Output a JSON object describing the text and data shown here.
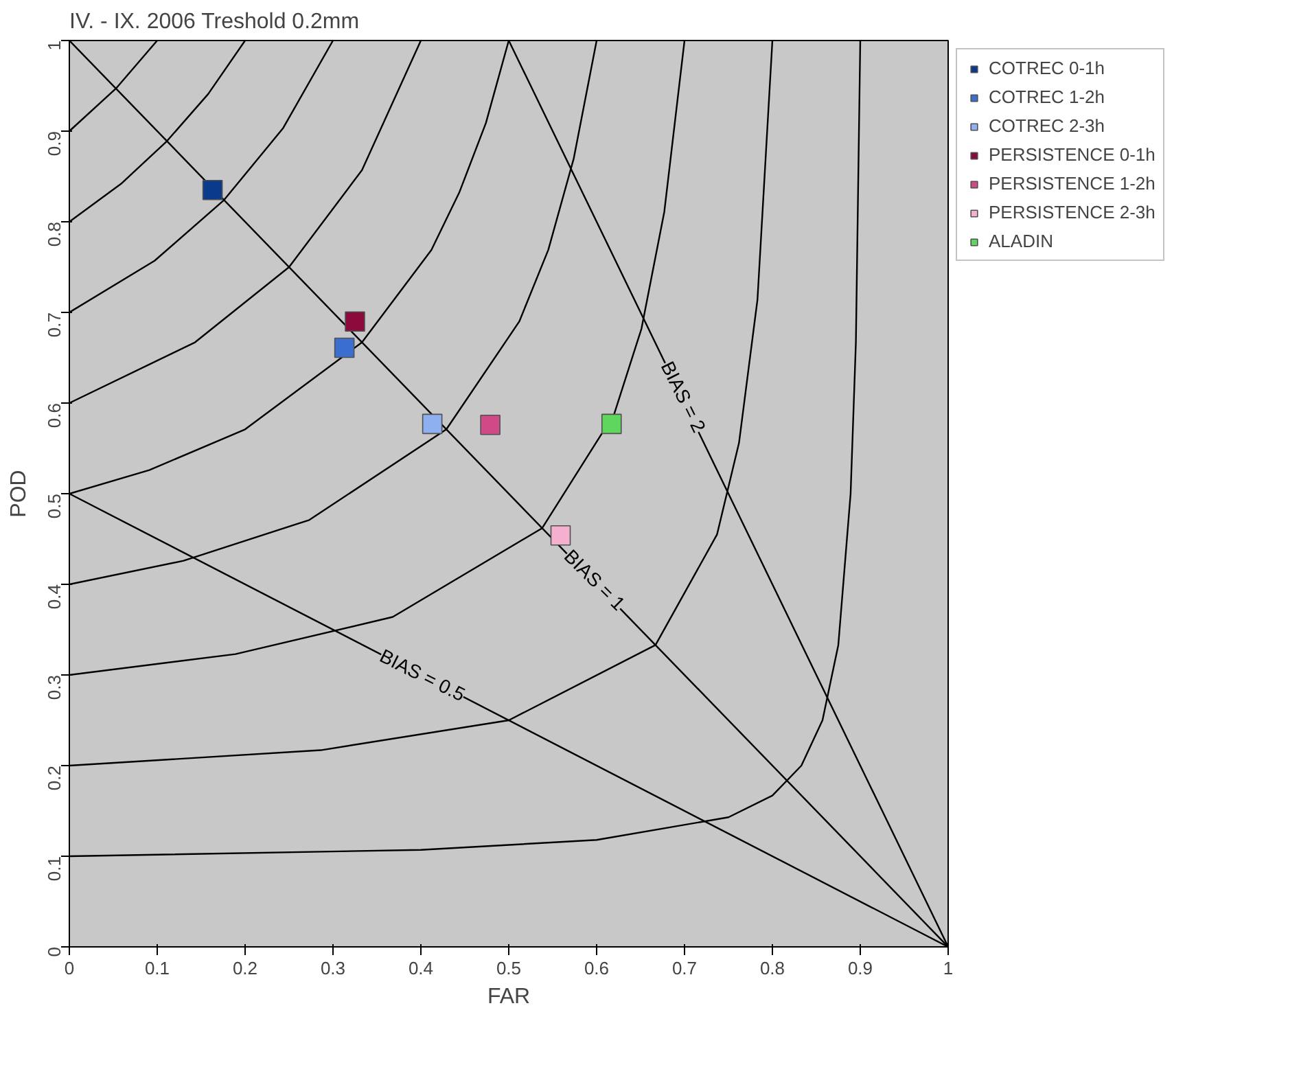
{
  "chart_data": {
    "type": "scatter",
    "title": "IV. - IX. 2006  Treshold 0.2mm",
    "xlabel": "FAR",
    "ylabel": "POD",
    "xlim": [
      0,
      1
    ],
    "ylim": [
      0,
      1
    ],
    "xticks": [
      0,
      0.1,
      0.2,
      0.3,
      0.4,
      0.5,
      0.6,
      0.7,
      0.8,
      0.9,
      1
    ],
    "yticks": [
      0,
      0.1,
      0.2,
      0.3,
      0.4,
      0.5,
      0.6,
      0.7,
      0.8,
      0.9,
      1
    ],
    "grid": false,
    "legend": "right",
    "marker": "square",
    "series": [
      {
        "type": "line",
        "marker": "none",
        "color": "#000000",
        "x": [
          0,
          0.4,
          0.6,
          0.75,
          0.8,
          0.833,
          0.857,
          0.875,
          0.889,
          0.895,
          0.9
        ],
        "values": [
          0.1,
          0.107,
          0.118,
          0.143,
          0.167,
          0.2,
          0.25,
          0.333,
          0.5,
          0.667,
          1
        ]
      },
      {
        "type": "line",
        "marker": "none",
        "color": "#000000",
        "x": [
          0,
          0.286,
          0.5,
          0.667,
          0.737,
          0.762,
          0.783,
          0.8
        ],
        "values": [
          0.2,
          0.217,
          0.25,
          0.333,
          0.455,
          0.556,
          0.714,
          1
        ]
      },
      {
        "type": "line",
        "marker": "none",
        "color": "#000000",
        "x": [
          0,
          0.189,
          0.368,
          0.538,
          0.62,
          0.651,
          0.677,
          0.7
        ],
        "values": [
          0.3,
          0.323,
          0.364,
          0.462,
          0.588,
          0.682,
          0.811,
          1
        ]
      },
      {
        "type": "line",
        "marker": "none",
        "color": "#000000",
        "x": [
          0,
          0.13,
          0.273,
          0.429,
          0.512,
          0.545,
          0.574,
          0.6
        ],
        "values": [
          0.4,
          0.426,
          0.471,
          0.571,
          0.69,
          0.769,
          0.87,
          1
        ]
      },
      {
        "type": "line",
        "marker": "none",
        "color": "#000000",
        "x": [
          0,
          0.091,
          0.2,
          0.333,
          0.412,
          0.444,
          0.474,
          0.5
        ],
        "values": [
          0.5,
          0.526,
          0.571,
          0.667,
          0.769,
          0.833,
          0.909,
          1
        ]
      },
      {
        "type": "line",
        "marker": "none",
        "color": "#000000",
        "x": [
          0,
          0.143,
          0.25,
          0.333,
          0.4
        ],
        "values": [
          0.6,
          0.667,
          0.75,
          0.857,
          1
        ]
      },
      {
        "type": "line",
        "marker": "none",
        "color": "#000000",
        "x": [
          0,
          0.097,
          0.176,
          0.243,
          0.3
        ],
        "values": [
          0.7,
          0.757,
          0.824,
          0.903,
          1
        ]
      },
      {
        "type": "line",
        "marker": "none",
        "color": "#000000",
        "x": [
          0,
          0.059,
          0.111,
          0.158,
          0.2
        ],
        "values": [
          0.8,
          0.842,
          0.889,
          0.941,
          1
        ]
      },
      {
        "type": "line",
        "marker": "none",
        "color": "#000000",
        "x": [
          0,
          0.053,
          0.1
        ],
        "values": [
          0.9,
          0.947,
          1
        ]
      },
      {
        "type": "line",
        "marker": "none",
        "color": "#000000",
        "x": [
          0.5,
          1
        ],
        "values": [
          1,
          0
        ]
      },
      {
        "type": "line",
        "marker": "none",
        "color": "#000000",
        "x": [
          0,
          1
        ],
        "values": [
          1,
          0
        ]
      },
      {
        "type": "line",
        "marker": "none",
        "color": "#000000",
        "x": [
          0,
          1
        ],
        "values": [
          0.5,
          0
        ]
      },
      {
        "name": "COTREC 0-1h",
        "color": "#0a3a8c",
        "x": [
          0.163
        ],
        "values": [
          0.835
        ]
      },
      {
        "name": "COTREC 1-2h",
        "color": "#3a6fd0",
        "x": [
          0.313
        ],
        "values": [
          0.661
        ]
      },
      {
        "name": "COTREC 2-3h",
        "color": "#8fb0f0",
        "x": [
          0.413
        ],
        "values": [
          0.577
        ]
      },
      {
        "name": "PERSISTENCE 0-1h",
        "color": "#8c0a3c",
        "x": [
          0.325
        ],
        "values": [
          0.69
        ]
      },
      {
        "name": "PERSISTENCE 1-2h",
        "color": "#d04a88",
        "x": [
          0.479
        ],
        "values": [
          0.576
        ]
      },
      {
        "name": "PERSISTENCE 2-3h",
        "color": "#f5b0d0",
        "x": [
          0.559
        ],
        "values": [
          0.454
        ]
      },
      {
        "name": "ALADIN",
        "color": "#5fd75f",
        "x": [
          0.617
        ],
        "values": [
          0.577
        ]
      }
    ],
    "annotations": [
      {
        "text": "BIAS = 2",
        "x": 0.699,
        "y": 0.607
      },
      {
        "text": "BIAS = 1",
        "x": 0.598,
        "y": 0.405
      },
      {
        "text": "BIAS = 0.5",
        "x": 0.402,
        "y": 0.3
      }
    ]
  }
}
